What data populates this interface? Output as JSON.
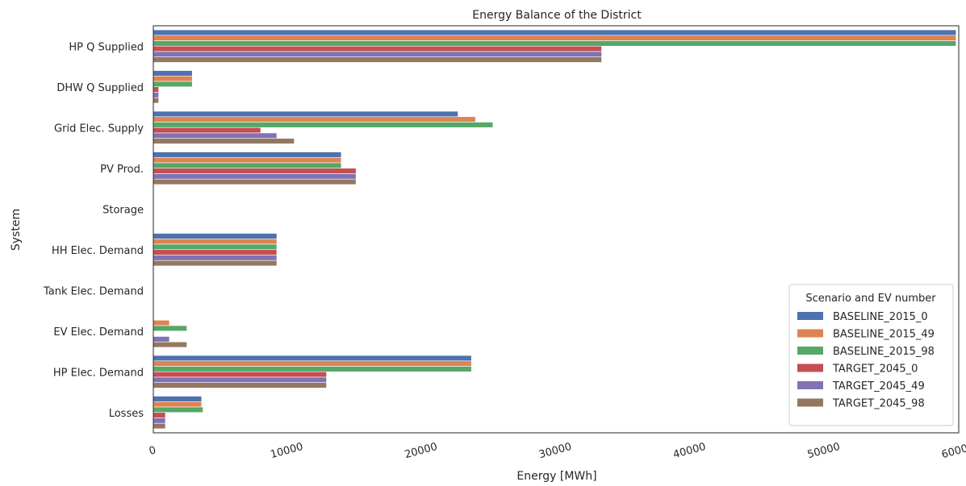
{
  "chart_data": {
    "type": "bar",
    "orientation": "horizontal",
    "title": "Energy Balance of the District",
    "xlabel": "Energy [MWh]",
    "ylabel": "System",
    "xlim": [
      0,
      60000
    ],
    "xticks": [
      0,
      10000,
      20000,
      30000,
      40000,
      50000,
      60000
    ],
    "xtick_labels": [
      "0",
      "10000",
      "20000",
      "30000",
      "40000",
      "50000",
      "60000"
    ],
    "grid": false,
    "categories": [
      "HP Q Supplied",
      "DHW Q Supplied",
      "Grid Elec. Supply",
      "PV Prod.",
      "Storage",
      "HH Elec. Demand",
      "Tank Elec. Demand",
      "EV Elec. Demand",
      "HP Elec. Demand",
      "Losses"
    ],
    "legend": {
      "title": "Scenario and EV number",
      "placement": "lower-right"
    },
    "series": [
      {
        "name": "BASELINE_2015_0",
        "color": "#4c72b0",
        "values": [
          59800,
          2900,
          22700,
          14000,
          0,
          9200,
          0,
          0,
          23700,
          3600
        ]
      },
      {
        "name": "BASELINE_2015_49",
        "color": "#dd8452",
        "values": [
          59800,
          2900,
          24000,
          14000,
          0,
          9200,
          0,
          1200,
          23700,
          3600
        ]
      },
      {
        "name": "BASELINE_2015_98",
        "color": "#55a868",
        "values": [
          59800,
          2900,
          25300,
          14000,
          0,
          9200,
          0,
          2500,
          23700,
          3700
        ]
      },
      {
        "name": "TARGET_2045_0",
        "color": "#c44e52",
        "values": [
          33400,
          400,
          8000,
          15100,
          0,
          9200,
          0,
          0,
          12900,
          900
        ]
      },
      {
        "name": "TARGET_2045_49",
        "color": "#8172b3",
        "values": [
          33400,
          400,
          9200,
          15100,
          0,
          9200,
          0,
          1200,
          12900,
          900
        ]
      },
      {
        "name": "TARGET_2045_98",
        "color": "#937860",
        "values": [
          33400,
          400,
          10500,
          15100,
          0,
          9200,
          0,
          2500,
          12900,
          900
        ]
      }
    ]
  }
}
